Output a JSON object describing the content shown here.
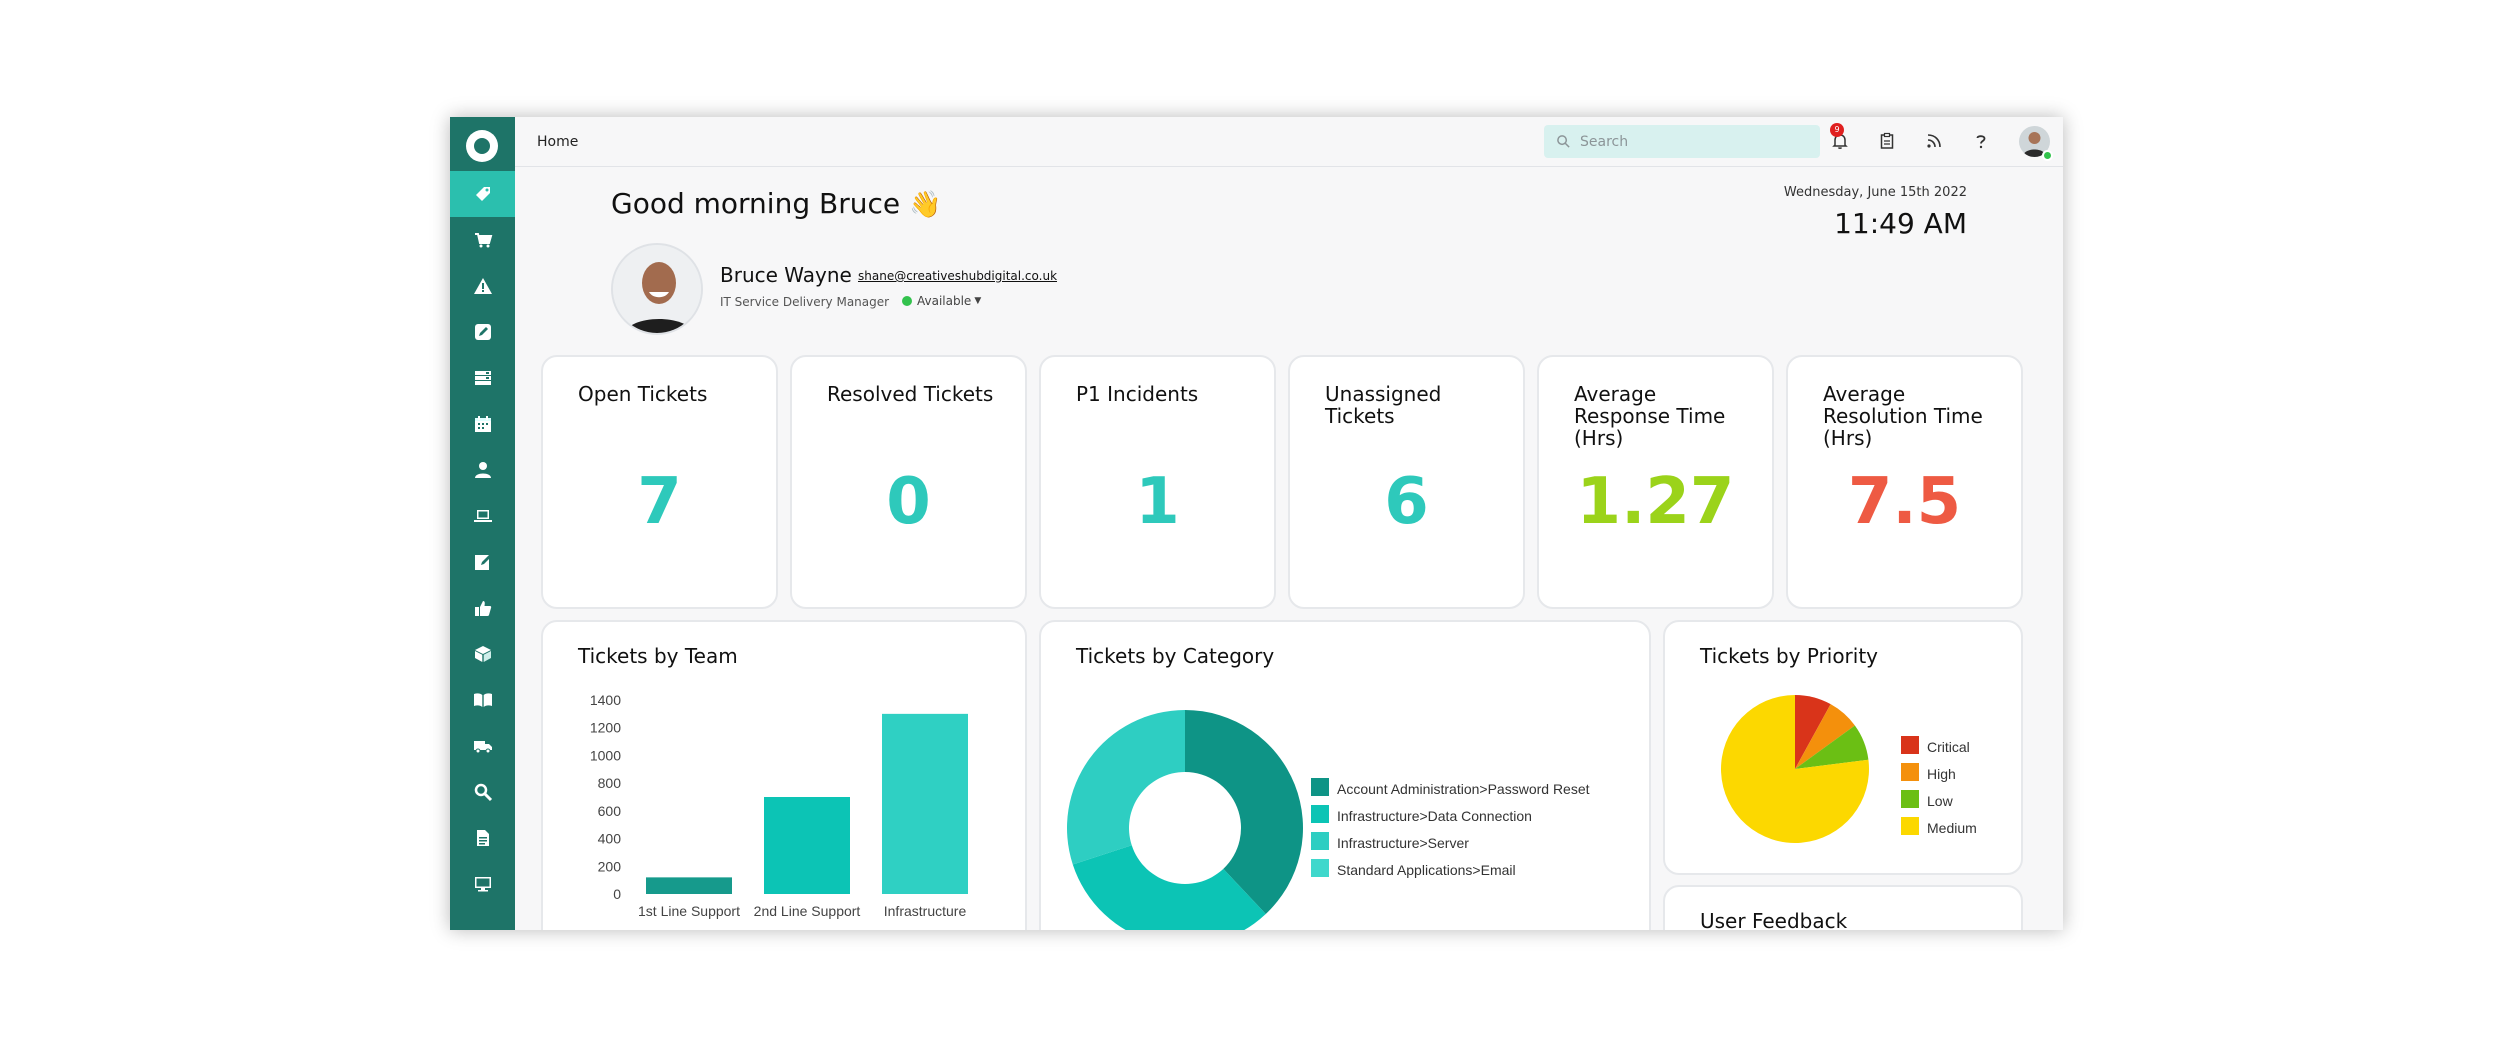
{
  "topbar": {
    "breadcrumb": "Home",
    "search_placeholder": "Search",
    "notification_count": "9"
  },
  "header": {
    "greeting": "Good morning Bruce",
    "date": "Wednesday, June 15th 2022",
    "time": "11:49 AM"
  },
  "user": {
    "name": "Bruce Wayne",
    "email": "shane@creativeshubdigital.co.uk",
    "role": "IT Service Delivery Manager",
    "status": "Available",
    "status_color": "#33c24d"
  },
  "sidebar": {
    "color": "#1e7468",
    "active_color": "#2bbfae",
    "icons": [
      "ticket-icon",
      "cart-icon",
      "warning-icon",
      "edit-icon",
      "server-icon",
      "calendar-icon",
      "user-icon",
      "laptop-icon",
      "note-edit-icon",
      "thumbs-up-icon",
      "box-icon",
      "book-icon",
      "truck-icon",
      "search-icon",
      "document-icon",
      "monitor-icon"
    ]
  },
  "kpis": [
    {
      "title": "Open Tickets",
      "value": "7",
      "color": "#2ec9bb"
    },
    {
      "title": "Resolved Tickets",
      "value": "0",
      "color": "#2ec9bb"
    },
    {
      "title": "P1 Incidents",
      "value": "1",
      "color": "#2ec9bb"
    },
    {
      "title": "Unassigned Tickets",
      "value": "6",
      "color": "#2ec9bb"
    },
    {
      "title": "Average Response Time (Hrs)",
      "value": "1.27",
      "color": "#9bd31a"
    },
    {
      "title": "Average Resolution Time (Hrs)",
      "value": "7.5",
      "color": "#ee5a43"
    }
  ],
  "panels": {
    "team_title": "Tickets by Team",
    "category_title": "Tickets by Category",
    "priority_title": "Tickets by Priority",
    "feedback_title": "User Feedback"
  },
  "chart_data": [
    {
      "type": "bar",
      "title": "Tickets by Team",
      "categories": [
        "1st Line Support",
        "2nd Line Support",
        "Infrastructure"
      ],
      "values": [
        120,
        700,
        1300
      ],
      "colors": [
        "#169a8c",
        "#0cc4b5",
        "#2fd0c3"
      ],
      "yticks": [
        0,
        200,
        400,
        600,
        800,
        1000,
        1200,
        1400
      ],
      "ylim": [
        0,
        1400
      ],
      "grid": false
    },
    {
      "type": "pie",
      "title": "Tickets by Category",
      "donut": true,
      "labels": [
        "Account Administration>Password Reset",
        "Infrastructure>Data Connection",
        "Infrastructure>Server",
        "Standard Applications>Email"
      ],
      "values": [
        38,
        32,
        30,
        0
      ],
      "colors": [
        "#0e9486",
        "#0cc4b5",
        "#2ecec2",
        "#3fd8cc"
      ],
      "legend": "right"
    },
    {
      "type": "pie",
      "title": "Tickets by Priority",
      "labels": [
        "Critical",
        "High",
        "Low",
        "Medium"
      ],
      "values": [
        8,
        7,
        8,
        77
      ],
      "colors": [
        "#d9341a",
        "#f4900c",
        "#6bbf14",
        "#fcd800"
      ],
      "legend": "right"
    }
  ]
}
